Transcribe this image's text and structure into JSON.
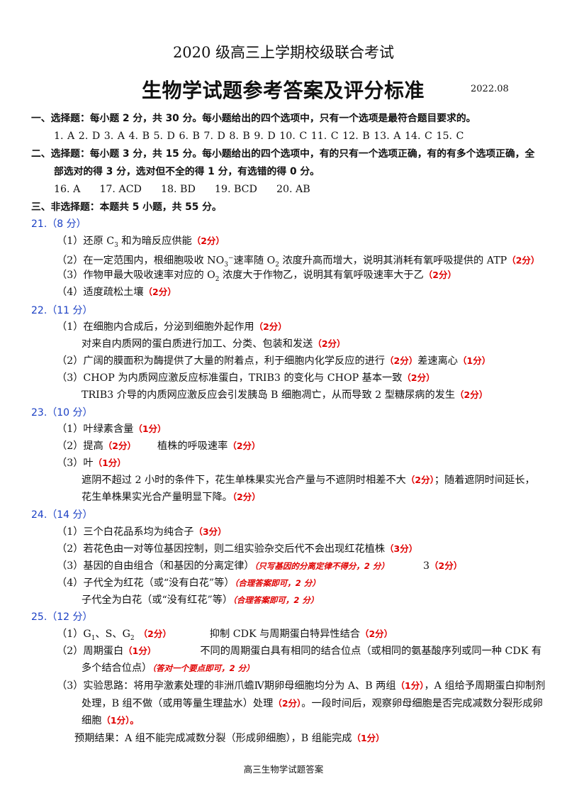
{
  "header": {
    "title": "2020 级高三上学期校级联合考试",
    "subtitle": "生物学试题参考答案及评分标准",
    "date": "2022.08"
  },
  "section1": {
    "heading": "一、选择题：每小题 2 分，共 30 分。每小题给出的四个选项中，只有一个选项是最符合题目要求的。",
    "answers": "1. A   2. D   3. A   4. B   5. D   6. B   7. D   8. B   9. D   10. C   11. C   12. B   13. A   14. C   15. C"
  },
  "section2": {
    "heading_line1": "二、选择题：每小题 3 分，共 15 分。每小题给出的四个选项中，有的只有一个选项正确，有的有多个选项正确，全",
    "heading_line2": "部选对的得 3 分，选对但不全的得 1 分，有选错的得 0 分。",
    "answers": "16. A      17. ACD      18. BD      19. BCD      20. AB"
  },
  "section3": {
    "heading": "三、非选择题：本题共 5 小题，共 55 分。"
  },
  "q21": {
    "head": "21.（8 分）",
    "l1a": "（1）还原 C",
    "l1sub": "3",
    "l1b": " 和为暗反应供能",
    "l1s": "（2分）",
    "l2a": "（2）在一定范围内，根细胞吸收 NO",
    "l2sub": "3",
    "l2sup": "−",
    "l2b": "速率随 O",
    "l2sub2": "2",
    "l2c": " 浓度升高而增大，说明其消耗有氧呼吸提供的 ATP",
    "l2s": "（2分）",
    "l3a": "（3）作物甲最大吸收速率对应的 O",
    "l3sub": "2",
    "l3b": " 浓度大于作物乙，说明其有氧呼吸速率大于乙",
    "l3s": "（2分）",
    "l4": "（4）适度疏松土壤",
    "l4s": "（2分）"
  },
  "q22": {
    "head": "22.（11 分）",
    "l1": "（1）在细胞内合成后，分泌到细胞外起作用",
    "l1s": "（2分）",
    "l2": "对来自内质网的蛋白质进行加工、分类、包装和发送",
    "l2s": "（2分）",
    "l3": "（2）广阔的膜面积为酶提供了大量的附着点，利于细胞内化学反应的进行",
    "l3s": "（2分）",
    "l3b": "差速离心",
    "l3s2": "（1分）",
    "l4": "（3）CHOP 为内质网应激反应标准蛋白，TRIB3 的变化与 CHOP 基本一致",
    "l4s": "（2分）",
    "l5": "TRIB3 介导的内质网应激反应会引发胰岛 B 细胞凋亡，从而导致 2 型糖尿病的发生",
    "l5s": "（2分）"
  },
  "q23": {
    "head": "23.（10 分）",
    "l1": "（1）叶绿素含量",
    "l1s": "（1分）",
    "l2": "（2）提高",
    "l2s": "（2分）",
    "l2b": "植株的呼吸速率",
    "l2s2": "（2分）",
    "l3": "（3）叶",
    "l3s": "（1分）",
    "l4": "遮阴不超过 2 小时的条件下，花生单株果实光合产量与不遮阴时相差不大",
    "l4s": "（2分）",
    "l4b": "；随着遮阴时间延长，",
    "l5": "花生单株果实光合产量明显下降。",
    "l5s": "（2分）"
  },
  "q24": {
    "head": "24.（14 分）",
    "l1": "（1）三个白花品系均为纯合子",
    "l1s": "（3分）",
    "l2": "（2）若花色由一对等位基因控制，则二组实验杂交后代不会出现红花植株",
    "l2s": "（3分）",
    "l3": "（3）基因的自由组合（和基因的分离定律）",
    "l3n": "（只写基因的分离定律不得分，2 分）",
    "l3b": "3",
    "l3s": "（2分）",
    "l4": "（4）子代全为红花（或“没有白花”等）",
    "l4n": "（合理答案即可，2 分）",
    "l5": "子代全为白花（或“没有红花”等）",
    "l5n": "（合理答案即可，2 分）"
  },
  "q25": {
    "head": "25.（12 分）",
    "l1a": "（1）G",
    "l1sub1": "1",
    "l1b": "、S、G",
    "l1sub2": "2",
    "l1s": "（2分）",
    "l1c": "抑制 CDK 与周期蛋白特异性结合",
    "l1s2": "（2分）",
    "l2": "（2）周期蛋白",
    "l2s": "（1分）",
    "l2b": "不同的周期蛋白具有相同的结合位点（或相同的氨基酸序列或同一种 CDK 有",
    "l3": "多个结合位点）",
    "l3n": "（答对一个要点即可，2 分）",
    "l4": "（3）实验思路：将用孕激素处理的非洲爪蟾Ⅳ期卵母细胞均分为 A、B 两组",
    "l4s": "（1分）",
    "l4b": "，A 组给予周期蛋白抑制剂",
    "l5": "处理，B 组不做（或用等量生理盐水）处理",
    "l5s": "（2分）",
    "l5b": "。一段时间后，观察卵母细胞是否完成减数分裂形成卵",
    "l6": "细胞",
    "l6s": "（1分）。",
    "l7": "预期结果：A 组不能完成减数分裂（形成卵细胞），B 组能完成",
    "l7s": "（1分）"
  },
  "footer": "高三生物学试题答案",
  "colors": {
    "question_head": "#1a3fc4",
    "score": "#e00000"
  }
}
